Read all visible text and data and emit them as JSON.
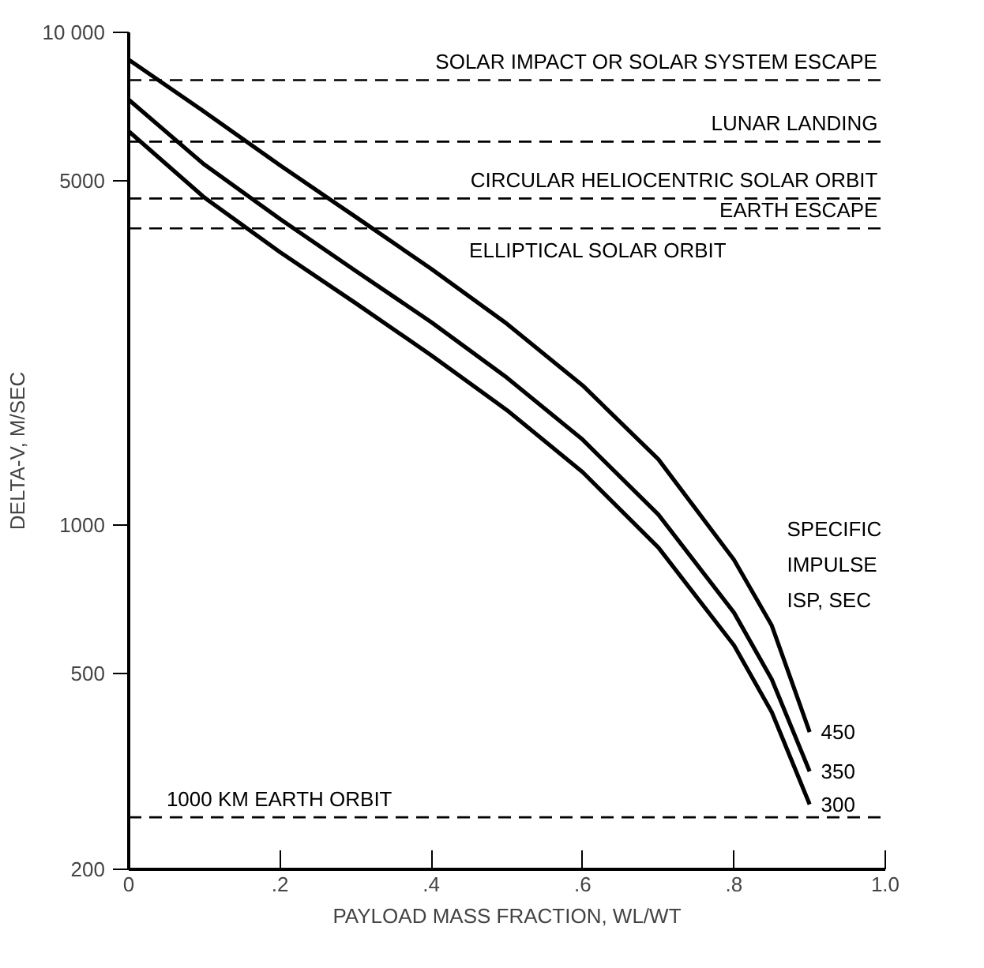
{
  "chart_data": {
    "type": "line",
    "xlabel": "PAYLOAD MASS FRACTION, WL/WT",
    "ylabel": "DELTA-V, M/SEC",
    "legend_title": "SPECIFIC\nIMPULSE\nISP, SEC",
    "x": [
      0,
      0.1,
      0.2,
      0.3,
      0.4,
      0.5,
      0.6,
      0.7,
      0.8,
      0.85,
      0.9
    ],
    "series": [
      {
        "name": "450",
        "color": "#000000",
        "values": [
          8800,
          6900,
          5370,
          4220,
          3310,
          2560,
          1920,
          1360,
          850,
          625,
          380
        ]
      },
      {
        "name": "350",
        "color": "#000000",
        "values": [
          7300,
          5390,
          4180,
          3280,
          2580,
          1990,
          1490,
          1050,
          664,
          486,
          316
        ]
      },
      {
        "name": "300",
        "color": "#000000",
        "values": [
          6300,
          4620,
          3580,
          2820,
          2210,
          1710,
          1280,
          900,
          570,
          417,
          271
        ]
      }
    ],
    "ref_lines": [
      {
        "axis": "y",
        "value": 8000,
        "label": "SOLAR IMPACT OR SOLAR SYSTEM ESCAPE",
        "line_style": "dashed"
      },
      {
        "axis": "y",
        "value": 6000,
        "label": "LUNAR LANDING",
        "line_style": "dashed"
      },
      {
        "axis": "y",
        "value": 4600,
        "label": "CIRCULAR HELIOCENTRIC SOLAR ORBIT",
        "line_style": "dashed"
      },
      {
        "axis": "y",
        "value": 4000,
        "label": "EARTH ESCAPE",
        "line_style": "dashed"
      },
      {
        "axis": "y",
        "value": 255,
        "label": "1000 KM EARTH ORBIT",
        "line_style": "dashed"
      }
    ],
    "annotations": [
      "ELLIPTICAL SOLAR ORBIT"
    ],
    "xlim": [
      0,
      1.0
    ],
    "ylim": [
      200,
      10000
    ],
    "xticks": [
      0,
      {
        "value": 0.2,
        "label": ".2"
      },
      {
        "value": 0.4,
        "label": ".4"
      },
      {
        "value": 0.6,
        "label": ".6"
      },
      {
        "value": 0.8,
        "label": ".8"
      },
      {
        "value": 1.0,
        "label": "1.0"
      }
    ],
    "yticks": [
      200,
      500,
      1000,
      5000,
      {
        "value": 10000,
        "label": "10 000"
      }
    ],
    "log": "y",
    "grid": false,
    "marker": "none",
    "line_style": "solid"
  }
}
